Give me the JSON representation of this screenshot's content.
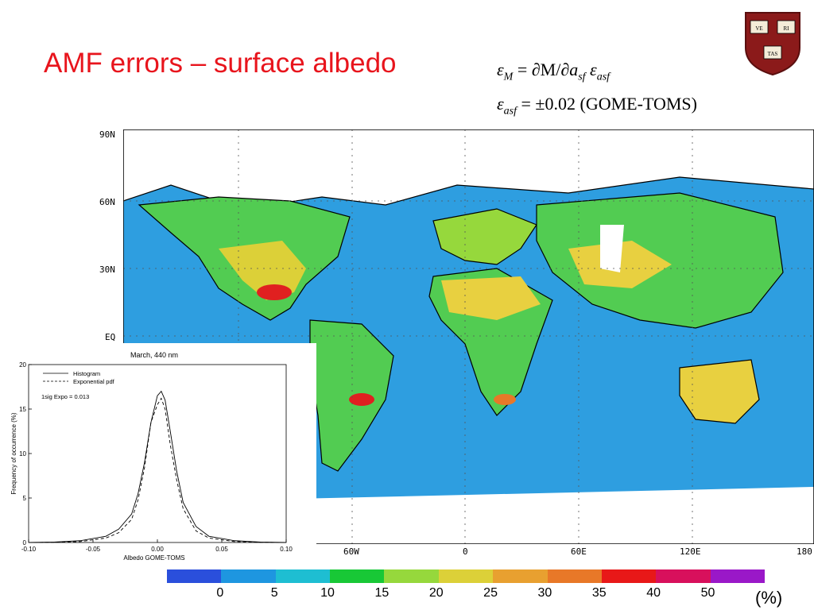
{
  "slide": {
    "title": "AMF errors – surface albedo",
    "eq1": {
      "eps": "ε",
      "sub_m": "M",
      "eq_sign": " = ",
      "partial1": "∂",
      "m": "M/",
      "partial2": "∂",
      "a": "a",
      "sub_sf": "sf",
      "space": " ",
      "eps2": "ε",
      "sub_asf": "asf"
    },
    "eq2": {
      "eps": "ε",
      "sub_asf": "asf",
      "rest": " = ±0.02 (GOME-TOMS)"
    }
  },
  "seal": {
    "cells": [
      "VE",
      "RI",
      "TAS"
    ],
    "color": "#8b1a1a"
  },
  "map": {
    "lat_labels": [
      "90N",
      "60N",
      "30N",
      "EQ"
    ],
    "lon_labels": [
      "60W",
      "0",
      "60E",
      "120E",
      "180"
    ],
    "colors": {
      "ocean": "#2e9ee0",
      "land": "#52cc52",
      "desert": "#e8d040",
      "hot": "#e02020",
      "ice": "#ffffff"
    }
  },
  "inset": {
    "title": "March, 440 nm",
    "xlabel": "Albedo GOME-TOMS",
    "ylabel": "Frequency of occurrence (%)",
    "legend": [
      "Histogram",
      "Exponential pdf"
    ],
    "annotation": "1sig Expo = 0.013",
    "x_ticks": [
      "-0.10",
      "-0.05",
      "0.00",
      "0.05",
      "0.10"
    ],
    "y_ticks": [
      "0",
      "5",
      "10",
      "15",
      "20"
    ]
  },
  "chart_data": {
    "type": "line",
    "title": "March, 440 nm",
    "xlabel": "Albedo GOME-TOMS",
    "ylabel": "Frequency of occurrence (%)",
    "xlim": [
      -0.1,
      0.1
    ],
    "ylim": [
      0,
      20
    ],
    "annotations": [
      "1sig Expo = 0.013"
    ],
    "legend_position": "top-left",
    "series": [
      {
        "name": "Histogram",
        "style": "solid",
        "x": [
          -0.1,
          -0.08,
          -0.06,
          -0.04,
          -0.03,
          -0.02,
          -0.015,
          -0.01,
          -0.005,
          0.0,
          0.003,
          0.006,
          0.01,
          0.015,
          0.02,
          0.03,
          0.04,
          0.06,
          0.08,
          0.1
        ],
        "y": [
          0.0,
          0.05,
          0.2,
          0.7,
          1.5,
          3.2,
          5.5,
          9.0,
          13.5,
          16.5,
          17.0,
          16.0,
          12.5,
          8.0,
          4.5,
          1.8,
          0.7,
          0.2,
          0.05,
          0.0
        ]
      },
      {
        "name": "Exponential pdf",
        "style": "dashed",
        "x": [
          -0.1,
          -0.08,
          -0.06,
          -0.04,
          -0.03,
          -0.02,
          -0.015,
          -0.01,
          -0.005,
          0.0,
          0.003,
          0.006,
          0.01,
          0.015,
          0.02,
          0.03,
          0.04,
          0.06,
          0.08,
          0.1
        ],
        "y": [
          0.0,
          0.02,
          0.1,
          0.5,
          1.1,
          2.6,
          4.8,
          8.4,
          13.5,
          15.5,
          16.2,
          15.0,
          11.0,
          7.0,
          3.8,
          1.3,
          0.5,
          0.1,
          0.02,
          0.0
        ]
      }
    ]
  },
  "colorbar": {
    "colors": [
      "#2a4fdc",
      "#1e96e0",
      "#1ebed2",
      "#18c836",
      "#96d83c",
      "#dcd038",
      "#e8a030",
      "#e87828",
      "#e81818",
      "#d8105c",
      "#9a18c8"
    ],
    "labels": [
      "0",
      "5",
      "10",
      "15",
      "20",
      "25",
      "30",
      "35",
      "40",
      "50"
    ],
    "units": "(%)"
  }
}
